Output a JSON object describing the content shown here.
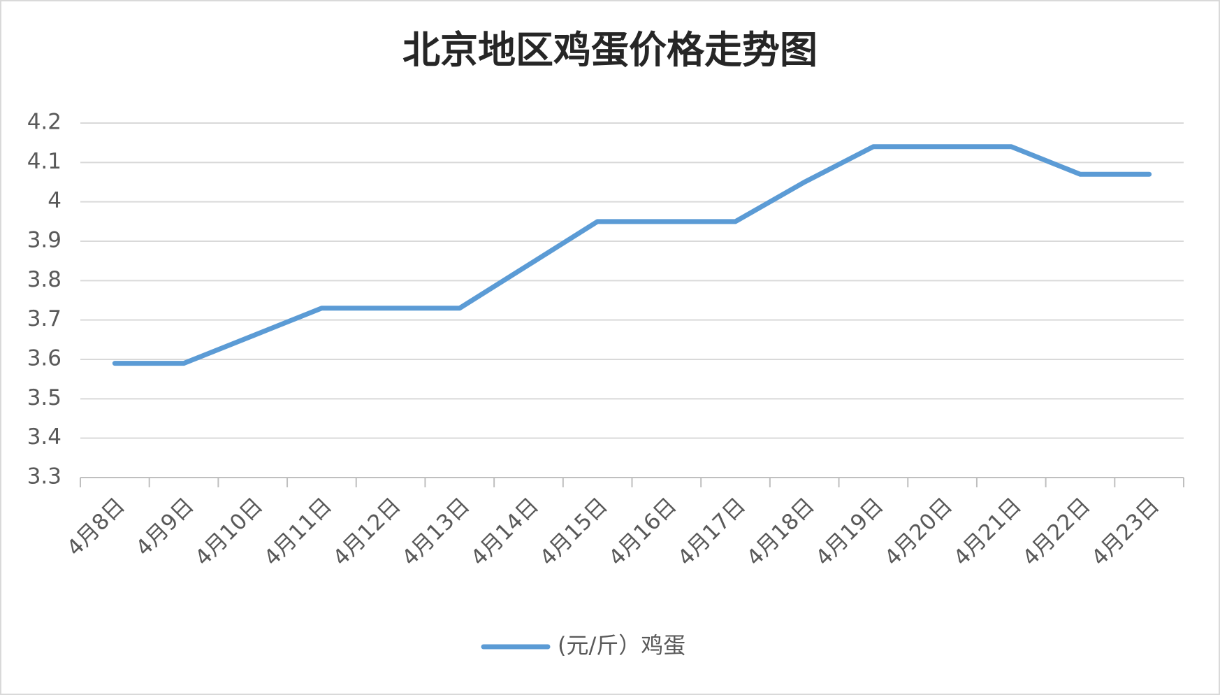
{
  "chart_data": {
    "type": "line",
    "title": "北京地区鸡蛋价格走势图",
    "categories": [
      "4月8日",
      "4月9日",
      "4月10日",
      "4月11日",
      "4月12日",
      "4月13日",
      "4月14日",
      "4月15日",
      "4月16日",
      "4月17日",
      "4月18日",
      "4月19日",
      "4月20日",
      "4月21日",
      "4月22日",
      "4月23日"
    ],
    "series": [
      {
        "name": "(元/斤）鸡蛋",
        "color": "#5b9bd5",
        "values": [
          3.59,
          3.59,
          3.66,
          3.73,
          3.73,
          3.73,
          3.84,
          3.95,
          3.95,
          3.95,
          4.05,
          4.14,
          4.14,
          4.14,
          4.07,
          4.07
        ]
      }
    ],
    "ylim": [
      3.3,
      4.2
    ],
    "yticks": [
      3.3,
      3.4,
      3.5,
      3.6,
      3.7,
      3.8,
      3.9,
      4,
      4.1,
      4.2
    ],
    "grid": true,
    "legend": "bottom"
  }
}
